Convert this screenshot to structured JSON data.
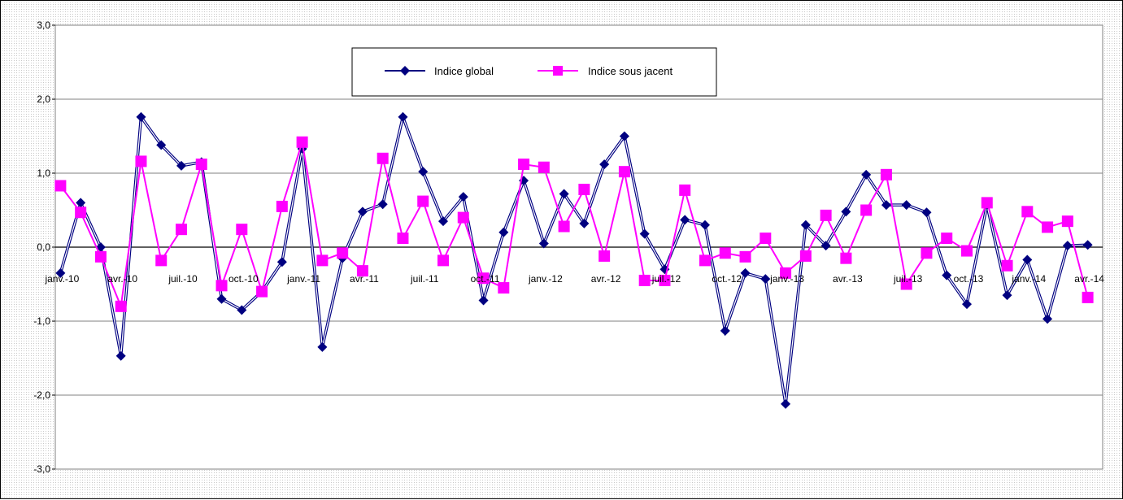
{
  "chart_data": {
    "type": "line",
    "ylim": [
      -3,
      3
    ],
    "yticks": [
      -3,
      -2,
      -1,
      0,
      1,
      2,
      3
    ],
    "ytick_labels": [
      "-3,0",
      "-2,0",
      "-1,0",
      "0,0",
      "1,0",
      "2,0",
      "3,0"
    ],
    "x": [
      "janv.-10",
      "févr.-10",
      "mars-10",
      "avr.-10",
      "mai-10",
      "juin-10",
      "juil.-10",
      "août-10",
      "sept.-10",
      "oct.-10",
      "nov.-10",
      "déc.-10",
      "janv.-11",
      "févr.-11",
      "mars-11",
      "avr.-11",
      "mai-11",
      "juin-11",
      "juil.-11",
      "août-11",
      "sept.-11",
      "oct.-11",
      "nov.-11",
      "déc.-11",
      "janv.-12",
      "févr.-12",
      "mars-12",
      "avr.-12",
      "mai-12",
      "juin-12",
      "juil.-12",
      "août-12",
      "sept.-12",
      "oct.-12",
      "nov.-12",
      "déc.-12",
      "janv.-13",
      "févr.-13",
      "mars-13",
      "avr.-13",
      "mai-13",
      "juin-13",
      "juil.-13",
      "août-13",
      "sept.-13",
      "oct.-13",
      "nov.-13",
      "déc.-13",
      "janv.-14",
      "févr.-14",
      "mars-14",
      "avr.-14"
    ],
    "xtick_labels": [
      {
        "index": 0,
        "label": "janv.-10"
      },
      {
        "index": 3,
        "label": "avr.-10"
      },
      {
        "index": 6,
        "label": "juil.-10"
      },
      {
        "index": 9,
        "label": "oct.-10"
      },
      {
        "index": 12,
        "label": "janv.-11"
      },
      {
        "index": 15,
        "label": "avr.-11"
      },
      {
        "index": 18,
        "label": "juil.-11"
      },
      {
        "index": 21,
        "label": "oct.-11"
      },
      {
        "index": 24,
        "label": "janv.-12"
      },
      {
        "index": 27,
        "label": "avr.-12"
      },
      {
        "index": 30,
        "label": "juil.-12"
      },
      {
        "index": 33,
        "label": "oct.-12"
      },
      {
        "index": 36,
        "label": "janv.-13"
      },
      {
        "index": 39,
        "label": "avr.-13"
      },
      {
        "index": 42,
        "label": "juil.-13"
      },
      {
        "index": 45,
        "label": "oct.-13"
      },
      {
        "index": 48,
        "label": "janv.-14"
      },
      {
        "index": 51,
        "label": "avr.-14"
      }
    ],
    "series": [
      {
        "name": "Indice global",
        "color": "#000080",
        "marker": "diamond",
        "values": [
          -0.35,
          0.6,
          0.0,
          -1.47,
          1.76,
          1.38,
          1.1,
          1.15,
          -0.7,
          -0.85,
          -0.6,
          -0.2,
          1.33,
          -1.35,
          -0.15,
          0.48,
          0.58,
          1.76,
          1.02,
          0.35,
          0.68,
          -0.72,
          0.2,
          0.9,
          0.05,
          0.72,
          0.32,
          1.12,
          1.5,
          0.18,
          -0.3,
          0.37,
          0.3,
          -1.13,
          -0.35,
          -0.43,
          -2.12,
          0.3,
          0.02,
          0.48,
          0.98,
          0.57,
          0.57,
          0.47,
          -0.38,
          -0.77,
          0.57,
          -0.65,
          -0.17,
          -0.97,
          0.02,
          0.03
        ]
      },
      {
        "name": "Indice sous jacent",
        "color": "#ff00ff",
        "marker": "square",
        "values": [
          0.83,
          0.47,
          -0.13,
          -0.8,
          1.16,
          -0.18,
          0.24,
          1.12,
          -0.52,
          0.24,
          -0.6,
          0.55,
          1.42,
          -0.18,
          -0.08,
          -0.32,
          1.2,
          0.12,
          0.62,
          -0.18,
          0.4,
          -0.42,
          -0.55,
          1.12,
          1.08,
          0.28,
          0.78,
          -0.12,
          1.02,
          -0.45,
          -0.45,
          0.77,
          -0.18,
          -0.08,
          -0.13,
          0.12,
          -0.35,
          -0.12,
          0.43,
          -0.15,
          0.5,
          0.98,
          -0.5,
          -0.08,
          0.12,
          -0.05,
          0.6,
          -0.25,
          0.48,
          0.27,
          0.35,
          -0.68
        ]
      }
    ],
    "legend": {
      "position": "top-center"
    },
    "grid": {
      "horizontal": true,
      "vertical": false
    }
  }
}
